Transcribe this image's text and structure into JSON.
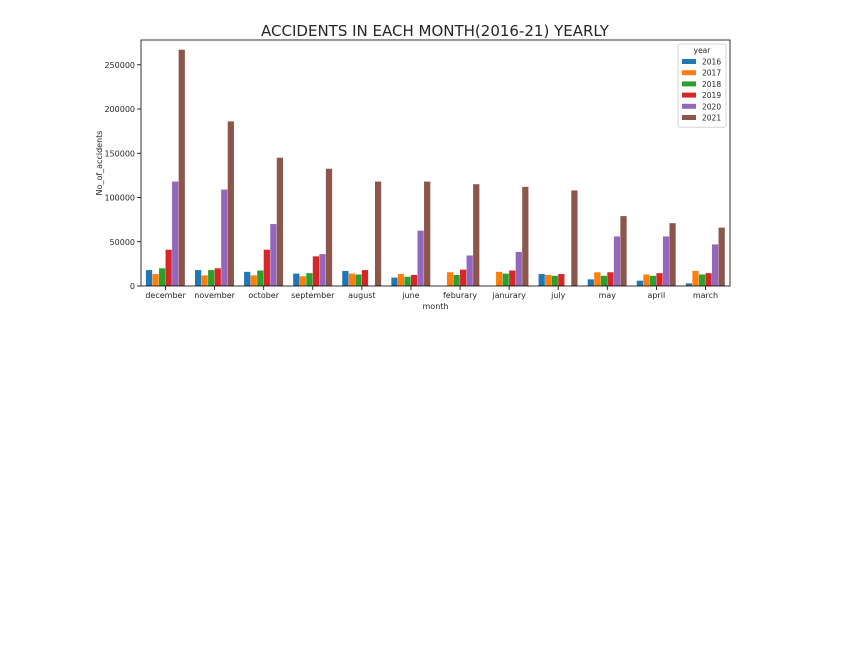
{
  "chart_data": {
    "type": "bar",
    "title": "ACCIDENTS IN EACH MONTH(2016-21) YEARLY",
    "xlabel": "month",
    "ylabel": "No_of_accidents",
    "ylim": [
      0,
      278000
    ],
    "yticks": [
      0,
      50000,
      100000,
      150000,
      200000,
      250000
    ],
    "grid": false,
    "legend": {
      "title": "year",
      "placement": "top-right"
    },
    "categories": [
      "december",
      "november",
      "october",
      "september",
      "august",
      "june",
      "feburary",
      "janurary",
      "july",
      "may",
      "april",
      "march"
    ],
    "series": [
      {
        "name": "2016",
        "color": "#1f77b4",
        "values": [
          18000,
          18000,
          16000,
          14000,
          17000,
          9500,
          0,
          0,
          13500,
          7500,
          6000,
          3000
        ]
      },
      {
        "name": "2017",
        "color": "#ff7f0e",
        "values": [
          13500,
          12000,
          12000,
          11000,
          14000,
          13500,
          15500,
          16000,
          12500,
          15500,
          13000,
          17000
        ]
      },
      {
        "name": "2018",
        "color": "#2ca02c",
        "values": [
          20000,
          18000,
          17500,
          14500,
          13000,
          10500,
          12500,
          14000,
          11500,
          11500,
          11500,
          13000
        ]
      },
      {
        "name": "2019",
        "color": "#d62728",
        "values": [
          41000,
          20000,
          41000,
          33500,
          18000,
          12500,
          18500,
          17500,
          13500,
          15500,
          14500,
          14500
        ]
      },
      {
        "name": "2020",
        "color": "#9467bd",
        "values": [
          118000,
          109000,
          70000,
          36000,
          0,
          62500,
          34500,
          38500,
          0,
          56000,
          56000,
          47000
        ]
      },
      {
        "name": "2021",
        "color": "#8c564b",
        "values": [
          267000,
          186000,
          145000,
          132500,
          118000,
          118000,
          115000,
          112000,
          108000,
          79000,
          71000,
          66000
        ]
      }
    ]
  }
}
